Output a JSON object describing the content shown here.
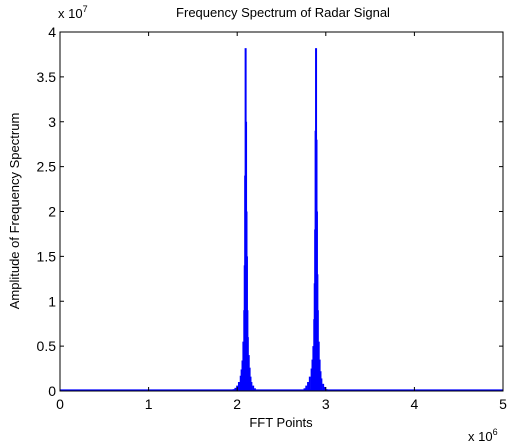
{
  "chart_data": {
    "type": "bar",
    "title": "Frequency Spectrum of Radar Signal",
    "xlabel": "FFT Points",
    "ylabel": "Amplitude of Frequency Spectrum",
    "x_multiplier": {
      "base": "x 10",
      "exp": "6"
    },
    "y_multiplier": {
      "base": "x 10",
      "exp": "7"
    },
    "xlim": [
      0,
      5000000
    ],
    "ylim": [
      0,
      40000000
    ],
    "xticks": [
      {
        "value": 0,
        "label": "0"
      },
      {
        "value": 1000000,
        "label": "1"
      },
      {
        "value": 2000000,
        "label": "2"
      },
      {
        "value": 3000000,
        "label": "3"
      },
      {
        "value": 4000000,
        "label": "4"
      },
      {
        "value": 5000000,
        "label": "5"
      }
    ],
    "yticks": [
      {
        "value": 0,
        "label": "0"
      },
      {
        "value": 5000000,
        "label": "0.5"
      },
      {
        "value": 10000000,
        "label": "1"
      },
      {
        "value": 15000000,
        "label": "1.5"
      },
      {
        "value": 20000000,
        "label": "2"
      },
      {
        "value": 25000000,
        "label": "2.5"
      },
      {
        "value": 30000000,
        "label": "3"
      },
      {
        "value": 35000000,
        "label": "3.5"
      },
      {
        "value": 40000000,
        "label": "4"
      }
    ],
    "grid": false,
    "colors": {
      "bars": "#0000ff",
      "axes": "#000000",
      "background": "#ffffff"
    },
    "series": [
      {
        "x": [
          1960000,
          1980000,
          2000000,
          2020000,
          2040000,
          2050000,
          2060000,
          2070000,
          2080000,
          2085000,
          2090000,
          2095000,
          2100000,
          2105000,
          2110000,
          2115000,
          2120000,
          2130000,
          2140000,
          2150000,
          2160000,
          2180000,
          2200000,
          2760000,
          2780000,
          2800000,
          2820000,
          2840000,
          2850000,
          2860000,
          2870000,
          2875000,
          2880000,
          2885000,
          2890000,
          2895000,
          2900000,
          2905000,
          2910000,
          2920000,
          2930000,
          2940000,
          2950000,
          2970000,
          2990000,
          3010000
        ],
        "values": [
          200000,
          350000,
          600000,
          1000000,
          1700000,
          2400000,
          3400000,
          5500000,
          9000000,
          14000000,
          24000000,
          38200000,
          30000000,
          20000000,
          15000000,
          9000000,
          6000000,
          4000000,
          2600000,
          1600000,
          1000000,
          600000,
          300000,
          300000,
          600000,
          1000000,
          1600000,
          2500000,
          3500000,
          5000000,
          8000000,
          12000000,
          18000000,
          29000000,
          38200000,
          28000000,
          20000000,
          13000000,
          9000000,
          5500000,
          3500000,
          2200000,
          1400000,
          800000,
          450000,
          200000
        ]
      }
    ]
  }
}
